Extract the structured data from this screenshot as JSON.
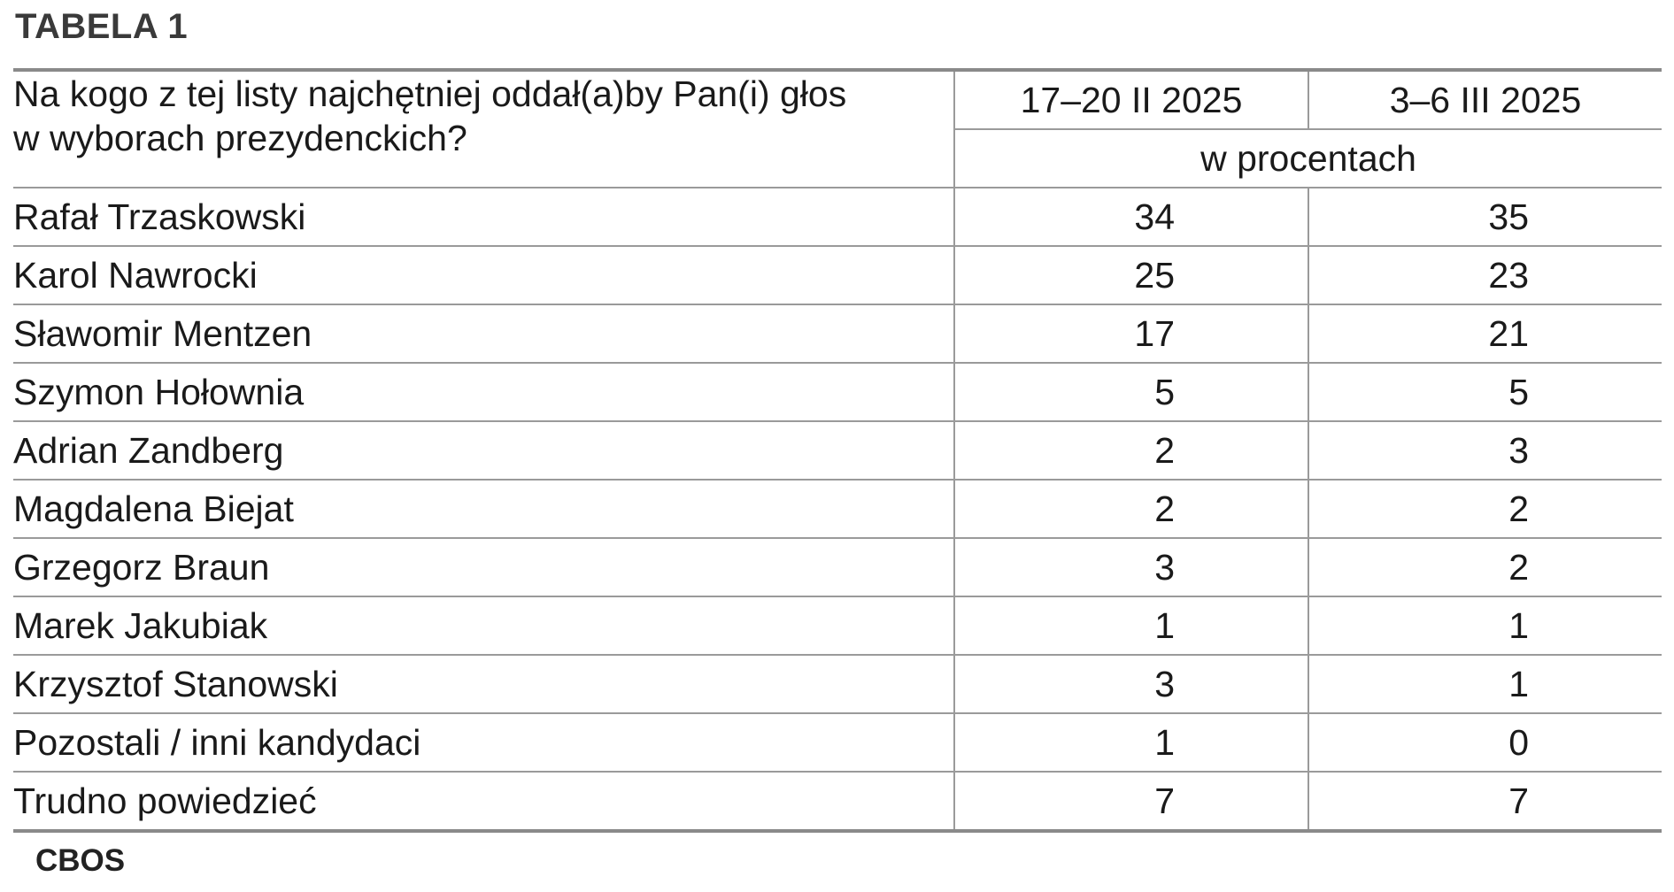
{
  "title": "TABELA 1",
  "header": {
    "question_line1": "Na kogo z tej listy najchętniej oddał(a)by Pan(i) głos",
    "question_line2": "w wyborach prezydenckich?",
    "period_1": "17–20 II 2025",
    "period_2": "3–6 III 2025",
    "unit": "w procentach"
  },
  "rows": [
    {
      "name": "Rafał Trzaskowski",
      "feb": "34",
      "mar": "35"
    },
    {
      "name": "Karol Nawrocki",
      "feb": "25",
      "mar": "23"
    },
    {
      "name": "Sławomir Mentzen",
      "feb": "17",
      "mar": "21"
    },
    {
      "name": "Szymon Hołownia",
      "feb": "5",
      "mar": "5"
    },
    {
      "name": "Adrian Zandberg",
      "feb": "2",
      "mar": "3"
    },
    {
      "name": "Magdalena Biejat",
      "feb": "2",
      "mar": "2"
    },
    {
      "name": "Grzegorz Braun",
      "feb": "3",
      "mar": "2"
    },
    {
      "name": "Marek Jakubiak",
      "feb": "1",
      "mar": "1"
    },
    {
      "name": "Krzysztof Stanowski",
      "feb": "3",
      "mar": "1"
    },
    {
      "name": "Pozostali / inni kandydaci",
      "feb": "1",
      "mar": "0"
    },
    {
      "name": "Trudno powiedzieć",
      "feb": "7",
      "mar": "7"
    }
  ],
  "source": "CBOS"
}
